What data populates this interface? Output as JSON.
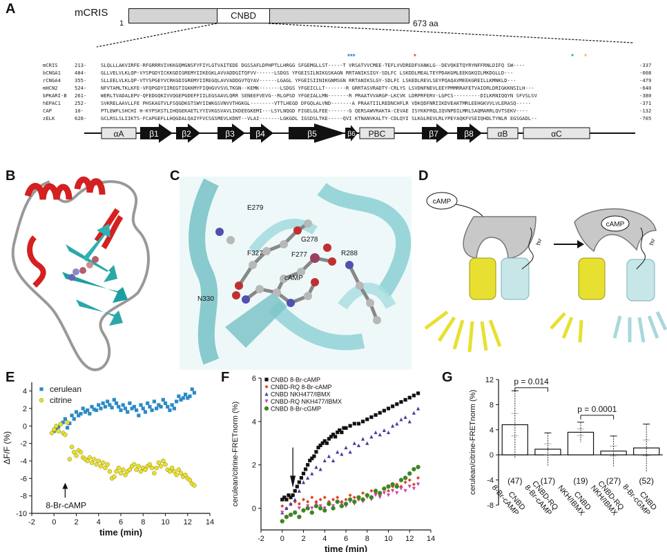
{
  "panels": [
    "A",
    "B",
    "C",
    "D",
    "E",
    "F",
    "G"
  ],
  "panelA": {
    "protein": "mCRIS",
    "start": "1",
    "end": "673 aa",
    "domain": "CNBD",
    "stars": [
      "***",
      "*",
      "*",
      "*"
    ],
    "star_colors": [
      "#3a7bd5",
      "#e8422a",
      "#2aa86b",
      "#f2b320"
    ],
    "rows": [
      {
        "name": "mCRIS",
        "start": "213-",
        "seq": "SLQLLLAKVIRFE-RFGRRRVIVKKGQMGNSFYFIYLGTVAITEDE DGSSAFLDPHPTLLHRGG SFGEMGLLST-----T VRSATVVCMEE-TEFLVVDREDFVANKLG--DEVQKETQYRYNFFRNLDIFQ SW----",
        "end": "-337"
      },
      {
        "name": "bCNGA1",
        "start": "484-",
        "seq": "GLLVELVLKLQP-VYSPGDYICKKGDIGREMYIIKEGKLAVVADDGITQFVV------LSDGS YFGEISILNIKGSKAGN RRTANIKSIGY-SDLFC LSKDDLMEALTEYPDAKGMLEEKGKQILMKDGLLD---",
        "end": "-608"
      },
      {
        "name": "rCNGA4",
        "start": "355-",
        "seq": "SLLEELVLKLQP-VTYSPGEYVCRKGDIGREMYIIREGQLAVVADDGVTQYAV------LGAGL YFGEISIINIKGNMSGN RRTANIKSLGY-SDLFC LSKEDLREVLSEYPQAQAVMEEKGREILLKMNKLD---",
        "end": "-479"
      },
      {
        "name": "mHCN2",
        "start": "524-",
        "seq": "NFVTAMLTKLKFE-VFQPGDYIIREGTIGKKMYFIQHGVVSVLTKGN--KEMK-------LSDGS YFGEICLLT-------R GRRTASVRADTY-CRLYS LSVDNFNEVLEEYPMMRRAFETVAIDRLDRIGKKNSILH---",
        "end": "-640"
      },
      {
        "name": "bPKARI-B",
        "start": "261-",
        "seq": "WERLTVADALEPV-QFEDGQKIVVQGEPGDEFFIILEGSAAVLQRR SENEEFVEVG--RLGPSD YFGEIALLMN-------R PRAATVVARGP-LKCVK LDRPRFERV-LGPCS---------DILKRNIQQYN SFVSLSV",
        "end": "-380"
      },
      {
        "name": "hEPAC1",
        "start": "252-",
        "seq": "SVKRELAAVLLFE PHSKAGTVLFSQGDKGTSWYIIWKGSVNVVTHGKGL--------VTTLHEGD DFGQLALVND-------A PRAATIILREDNCHFLR VDKQDFNRIIKDVEAKTMRLEEHGKVVLVLERASQ-----",
        "end": "-371"
      },
      {
        "name": "CAP",
        "start": "10-",
        "seq": "PTLEWFLSHCHI H-KYPSKSTLIHQGEKAETLYYIVKGSVAVLIKDEEGKEMI---LSYLNQGD FIGELGLFEE-------G QERSAWVRAKTA-CEVAE ISYKKFRQLIQVNPDILMRLSAQMARRLQVTSEKV----",
        "end": "-132"
      },
      {
        "name": "zELK",
        "start": "628-",
        "seq": "GCLRSLSLIIKTS-FCAPGEFLLHQGDALQAIYFVCSGSMEVLKDNT--VLAI-------LGKGDL IGSDSLTKE-----QVI KTNANVKALTY-CDLQYI SLKGLREVLRLYPEYAQKFVSEIQHDLTYNLR EGSGADL--",
        "end": "-705"
      }
    ],
    "structure": [
      "αA",
      "β1",
      "β2",
      "β3",
      "β4",
      "β5",
      "β6",
      "PBC",
      "β7",
      "β8",
      "αB",
      "αC"
    ]
  },
  "panelC": {
    "labels": [
      "E279",
      "G278",
      "F327",
      "F277",
      "R288",
      "cAMP",
      "N330"
    ]
  },
  "panelD": {
    "ligand1": "cAMP",
    "ligand2": "cAMP",
    "hv1": "hν",
    "hv2": "hν",
    "colors": {
      "gray": "#c8c8c8",
      "yellow": "#e8e030",
      "cyan": "#a8d8dc"
    }
  },
  "panelE": {
    "chart_data": {
      "type": "scatter",
      "xlabel": "time (min)",
      "ylabel": "ΔF/F (%)",
      "xlim": [
        -2,
        14
      ],
      "ylim": [
        -10,
        5
      ],
      "xticks": [
        "-2",
        "0",
        "2",
        "4",
        "6",
        "8",
        "10",
        "12",
        "14"
      ],
      "yticks": [
        "4",
        "2",
        "0",
        "-2",
        "-4",
        "-6",
        "-8",
        "-10"
      ],
      "annotation": "8-Br-cAMP",
      "annotation_x": 1.0,
      "series": [
        {
          "name": "cerulean",
          "color": "#2c8ac7",
          "marker": "square",
          "x": [
            0.0,
            0.2,
            0.4,
            0.6,
            0.8,
            1.0,
            1.2,
            1.4,
            1.6,
            1.8,
            2.0,
            2.2,
            2.4,
            2.6,
            2.8,
            3.0,
            3.2,
            3.4,
            3.6,
            3.8,
            4.0,
            4.2,
            4.4,
            4.6,
            4.8,
            5.0,
            5.2,
            5.4,
            5.6,
            5.8,
            6.0,
            6.2,
            6.4,
            6.6,
            6.8,
            7.0,
            7.2,
            7.4,
            7.6,
            7.8,
            8.0,
            8.2,
            8.4,
            8.6,
            8.8,
            9.0,
            9.2,
            9.4,
            9.6,
            9.8,
            10.0,
            10.2,
            10.4,
            10.6,
            10.8,
            11.0,
            11.2,
            11.4,
            11.6,
            11.8,
            12.0,
            12.2,
            12.4,
            12.6
          ],
          "y": [
            -0.6,
            -0.3,
            -0.1,
            0.2,
            0.4,
            0.8,
            -0.2,
            0.3,
            1.2,
            0.8,
            1.6,
            1.2,
            1.4,
            2.0,
            1.6,
            1.8,
            1.4,
            2.2,
            1.9,
            1.8,
            2.4,
            2.0,
            2.6,
            2.2,
            2.8,
            2.4,
            2.1,
            3.0,
            2.6,
            2.2,
            1.8,
            2.4,
            2.0,
            1.6,
            2.6,
            2.0,
            2.2,
            1.8,
            1.2,
            2.4,
            2.0,
            1.6,
            2.6,
            2.2,
            1.8,
            2.8,
            2.0,
            2.4,
            2.2,
            3.0,
            2.6,
            2.2,
            1.8,
            2.4,
            2.0,
            2.8,
            3.4,
            3.0,
            3.2,
            3.6,
            3.2,
            3.4,
            4.2,
            3.8
          ]
        },
        {
          "name": "citrine",
          "color": "#e8e030",
          "marker": "circle",
          "x": [
            -0.2,
            0.0,
            0.2,
            0.4,
            0.6,
            0.8,
            1.0,
            1.2,
            1.4,
            1.6,
            1.8,
            2.0,
            2.2,
            2.4,
            2.6,
            2.8,
            3.0,
            3.2,
            3.4,
            3.6,
            3.8,
            4.0,
            4.2,
            4.4,
            4.6,
            4.8,
            5.0,
            5.2,
            5.4,
            5.6,
            5.8,
            6.0,
            6.2,
            6.4,
            6.6,
            6.8,
            7.0,
            7.2,
            7.4,
            7.6,
            7.8,
            8.0,
            8.2,
            8.4,
            8.6,
            8.8,
            9.0,
            9.2,
            9.4,
            9.6,
            9.8,
            10.0,
            10.2,
            10.4,
            10.6,
            10.8,
            11.0,
            11.2,
            11.4,
            11.6,
            11.8,
            12.0,
            12.2,
            12.4,
            12.6
          ],
          "y": [
            -0.8,
            -0.4,
            0.0,
            -0.6,
            0.2,
            -0.8,
            -1.0,
            0.4,
            -3.8,
            -2.4,
            -3.0,
            -3.4,
            -2.8,
            -3.0,
            -3.6,
            -3.8,
            -4.0,
            -3.6,
            -4.2,
            -3.8,
            -4.4,
            -4.0,
            -4.6,
            -4.2,
            -4.8,
            -4.4,
            -5.2,
            -6.0,
            -5.8,
            -5.2,
            -4.8,
            -5.4,
            -5.0,
            -5.6,
            -5.2,
            -5.0,
            -4.6,
            -4.4,
            -5.0,
            -4.6,
            -5.2,
            -4.8,
            -5.0,
            -4.6,
            -4.4,
            -4.8,
            -5.4,
            -4.8,
            -4.2,
            -4.6,
            -4.0,
            -4.4,
            -5.0,
            -5.2,
            -4.8,
            -5.2,
            -5.6,
            -5.0,
            -5.4,
            -5.8,
            -5.6,
            -6.0,
            -6.2,
            -6.6,
            -6.8
          ]
        }
      ]
    }
  },
  "panelF": {
    "chart_data": {
      "type": "scatter",
      "xlabel": "time (min)",
      "ylabel": "cerulean/citrine-FRETnorm (%)",
      "xlim": [
        -2,
        14
      ],
      "ylim": [
        -1,
        6
      ],
      "xticks": [
        "-2",
        "0",
        "2",
        "4",
        "6",
        "8",
        "10",
        "12",
        "14"
      ],
      "yticks": [
        "6",
        "4",
        "2",
        "0"
      ],
      "legend_position": "top-left",
      "series": [
        {
          "name": "CNBD 8-Br-cAMP",
          "color": "#111111",
          "marker": "square",
          "x": [
            0.0,
            0.2,
            0.4,
            0.6,
            0.8,
            1.0,
            1.2,
            1.4,
            1.6,
            1.8,
            2.0,
            2.2,
            2.4,
            2.6,
            2.8,
            3.0,
            3.2,
            3.4,
            3.6,
            3.8,
            4.0,
            4.2,
            4.4,
            4.6,
            4.8,
            5.0,
            5.2,
            5.4,
            5.6,
            5.8,
            6.0,
            6.4,
            6.8,
            7.2,
            7.6,
            8.0,
            8.4,
            8.8,
            9.2,
            9.6,
            10.0,
            10.4,
            10.8,
            11.2,
            11.6,
            12.0,
            12.4,
            12.8
          ],
          "y": [
            0.4,
            0.5,
            0.4,
            0.6,
            0.5,
            0.6,
            0.8,
            1.0,
            1.2,
            1.4,
            1.6,
            1.8,
            2.0,
            2.2,
            2.3,
            2.4,
            2.6,
            2.8,
            2.9,
            3.0,
            3.1,
            3.0,
            3.2,
            3.3,
            3.4,
            3.3,
            3.5,
            3.6,
            3.5,
            3.7,
            3.7,
            3.8,
            3.9,
            3.9,
            4.0,
            4.1,
            4.2,
            4.3,
            4.4,
            4.5,
            4.6,
            4.7,
            4.8,
            4.9,
            5.0,
            5.1,
            5.2,
            5.3
          ]
        },
        {
          "name": "CNBD-RQ 8-Br-cAMP",
          "color": "#e0452a",
          "marker": "diamond",
          "x": [
            0.0,
            0.4,
            0.8,
            1.2,
            1.6,
            2.0,
            2.4,
            2.8,
            3.2,
            3.6,
            4.0,
            4.4,
            4.8,
            5.2,
            5.6,
            6.0,
            6.4,
            6.8,
            7.2,
            7.6,
            8.0,
            8.4,
            8.8,
            9.2,
            9.6,
            10.0,
            10.4,
            10.8,
            11.2,
            11.6,
            12.0,
            12.4,
            12.8
          ],
          "y": [
            0.1,
            0.0,
            0.2,
            0.3,
            0.2,
            0.4,
            0.3,
            0.5,
            0.3,
            0.4,
            0.5,
            0.3,
            0.4,
            0.5,
            0.3,
            0.4,
            0.6,
            0.5,
            0.4,
            0.7,
            0.6,
            0.8,
            0.7,
            0.6,
            0.9,
            0.8,
            1.0,
            1.1,
            1.0,
            1.2,
            1.3,
            1.1,
            1.4
          ]
        },
        {
          "name": "CNBD NKH477/IBMX",
          "color": "#4a3c9a",
          "marker": "triangle",
          "x": [
            0.0,
            0.4,
            0.8,
            1.2,
            1.6,
            2.0,
            2.4,
            2.8,
            3.2,
            3.6,
            4.0,
            4.4,
            4.8,
            5.2,
            5.6,
            6.0,
            6.4,
            6.8,
            7.2,
            7.6,
            8.0,
            8.4,
            8.8,
            9.2,
            9.6,
            10.0,
            10.4,
            10.8,
            11.2,
            11.6,
            12.0,
            12.4,
            12.8
          ],
          "y": [
            -0.2,
            0.0,
            0.2,
            0.4,
            0.8,
            1.2,
            1.4,
            1.6,
            1.9,
            1.8,
            2.2,
            2.4,
            2.2,
            2.6,
            2.5,
            2.8,
            2.6,
            3.0,
            2.9,
            3.2,
            3.0,
            3.3,
            3.5,
            3.4,
            3.6,
            3.5,
            3.8,
            3.9,
            4.1,
            4.2,
            4.0,
            4.4,
            4.6
          ]
        },
        {
          "name": "CNBD-RQ NKH477/IBMX",
          "color": "#cc44aa",
          "marker": "triangle-down",
          "x": [
            0.0,
            0.4,
            0.8,
            1.2,
            1.6,
            2.0,
            2.4,
            2.8,
            3.2,
            3.6,
            4.0,
            4.4,
            4.8,
            5.2,
            5.6,
            6.0,
            6.4,
            6.8,
            7.2,
            7.6,
            8.0,
            8.4,
            8.8,
            9.2,
            9.6,
            10.0,
            10.4,
            10.8,
            11.2,
            11.6,
            12.0,
            12.4,
            12.8
          ],
          "y": [
            -0.2,
            -0.4,
            -0.3,
            -0.2,
            0.0,
            -0.1,
            0.1,
            0.0,
            0.2,
            0.1,
            0.0,
            0.2,
            0.1,
            0.3,
            0.2,
            0.1,
            0.3,
            0.2,
            0.4,
            0.3,
            0.5,
            0.4,
            0.6,
            0.5,
            0.7,
            0.6,
            0.8,
            0.7,
            0.9,
            0.8,
            1.0,
            0.9,
            1.1
          ]
        },
        {
          "name": "CNBD 8-Br-cGMP",
          "color": "#2e8b2e",
          "marker": "circle",
          "x": [
            0.0,
            0.4,
            0.8,
            1.2,
            1.6,
            2.0,
            2.4,
            2.8,
            3.2,
            3.6,
            4.0,
            4.4,
            4.8,
            5.2,
            5.6,
            6.0,
            6.4,
            6.8,
            7.2,
            7.6,
            8.0,
            8.4,
            8.8,
            9.2,
            9.6,
            10.0,
            10.4,
            10.8,
            11.2,
            11.6,
            12.0,
            12.4,
            12.8
          ],
          "y": [
            -0.6,
            -0.4,
            -0.3,
            -0.2,
            -0.4,
            -0.1,
            0.0,
            -0.2,
            0.1,
            0.0,
            -0.1,
            0.2,
            0.0,
            0.3,
            0.1,
            0.2,
            0.4,
            0.3,
            0.5,
            0.4,
            0.6,
            0.5,
            0.8,
            0.7,
            0.9,
            1.0,
            1.1,
            1.0,
            1.3,
            1.4,
            1.6,
            1.8,
            1.9
          ]
        }
      ]
    }
  },
  "panelG": {
    "chart_data": {
      "type": "bar",
      "ylabel": "cerulean/citrine-FRETnorm (%)",
      "ylim": [
        -8,
        12
      ],
      "yticks": [
        "12",
        "8",
        "4",
        "0",
        "-4",
        "-8"
      ],
      "categories": [
        "CNBD 8-Br-cAMP",
        "CNBD-RQ 8-Br-cAMP",
        "CNBD NKH/IBMX",
        "CNBD-RQ NKH/IBMX",
        "CNBD 8-Br-cGMP"
      ],
      "cat_line1": [
        "CNBD",
        "CNBD-RQ",
        "CNBD",
        "CNBD-RQ",
        "CNBD"
      ],
      "cat_line2": [
        "8-Br-cAMP",
        "8-Br-cAMP",
        "NKH/IBMX",
        "NKH/IBMX",
        "8-Br-cGMP"
      ],
      "values": [
        4.8,
        0.9,
        3.6,
        0.6,
        1.1
      ],
      "errors": [
        5.4,
        2.6,
        1.6,
        2.4,
        3.8
      ],
      "n_labels": [
        "(47)",
        "(17)",
        "(19)",
        "(27)",
        "(52)"
      ],
      "pvalues": [
        {
          "label": "p = 0.014",
          "from": 0,
          "to": 1
        },
        {
          "label": "p = 0.0001",
          "from": 2,
          "to": 3
        }
      ]
    }
  }
}
